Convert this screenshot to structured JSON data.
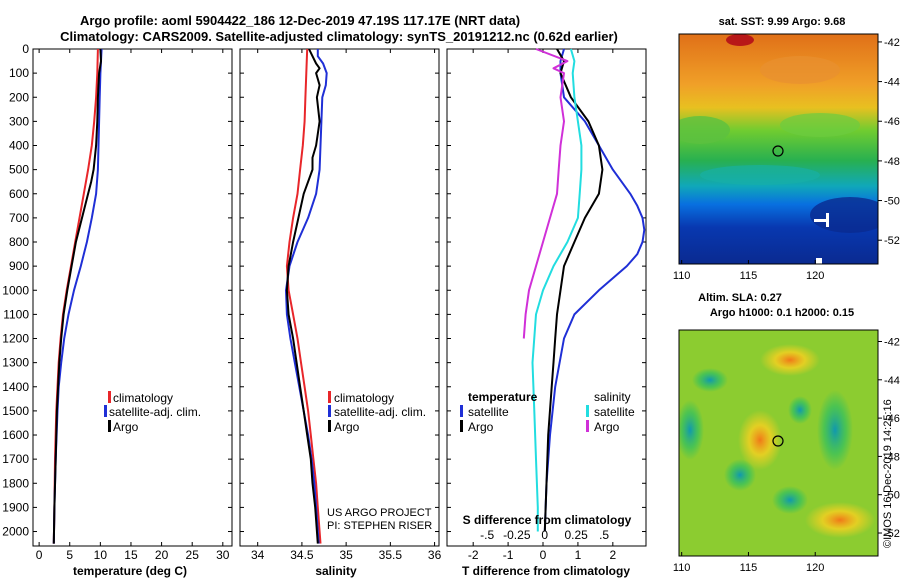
{
  "title_line1": "Argo profile: aoml 5904422_186 12-Dec-2019 47.19S 117.17E (NRT data)",
  "title_line2": "Climatology: CARS2009. Satellite-adjusted climatology: synTS_20191212.nc (0.62d earlier)",
  "colors": {
    "climatology": "#e8262a",
    "satellite": "#1f2fd6",
    "argo": "#000000",
    "sat_salinity": "#22dde0",
    "argo_salinity_diff": "#d030d8"
  },
  "depth_ticks": [
    "0",
    "100",
    "200",
    "300",
    "400",
    "500",
    "600",
    "700",
    "800",
    "900",
    "1000",
    "1100",
    "1200",
    "1300",
    "1400",
    "1500",
    "1600",
    "1700",
    "1800",
    "1900",
    "2000"
  ],
  "chart_data": [
    {
      "type": "line",
      "name": "temperature",
      "xlabel": "temperature (deg C)",
      "ylabel": "",
      "xlim": [
        -1,
        31.5
      ],
      "ylim": [
        2060,
        0
      ],
      "xticks": [
        "0",
        "5",
        "10",
        "15",
        "20",
        "25",
        "30"
      ],
      "legend": [
        "climatology",
        "satellite-adj. clim.",
        "Argo"
      ],
      "legend_position": "bottom-right",
      "series": [
        {
          "name": "climatology",
          "color": "#e8262a",
          "depth": [
            0,
            100,
            200,
            300,
            400,
            500,
            600,
            700,
            800,
            900,
            1000,
            1100,
            1200,
            1300,
            1400,
            1500,
            1700,
            1900,
            2050
          ],
          "values": [
            9.6,
            9.5,
            9.3,
            9.0,
            8.6,
            8.0,
            7.3,
            6.6,
            5.9,
            5.2,
            4.5,
            3.9,
            3.5,
            3.2,
            3.0,
            2.8,
            2.6,
            2.5,
            2.4
          ]
        },
        {
          "name": "satellite-adj. clim.",
          "color": "#1f2fd6",
          "depth": [
            0,
            100,
            200,
            300,
            400,
            500,
            600,
            700,
            800,
            900,
            1000,
            1100,
            1200,
            1300,
            1400,
            1500,
            1700,
            1900,
            2050
          ],
          "values": [
            10.2,
            10.0,
            9.9,
            9.8,
            9.7,
            9.6,
            9.3,
            8.6,
            7.8,
            6.8,
            5.7,
            4.8,
            4.1,
            3.6,
            3.2,
            3.0,
            2.7,
            2.5,
            2.4
          ]
        },
        {
          "name": "Argo",
          "color": "#000000",
          "depth": [
            0,
            50,
            100,
            200,
            300,
            400,
            500,
            550,
            600,
            700,
            800,
            900,
            1000,
            1100,
            1200,
            1300,
            1400,
            1500,
            1700,
            1900,
            2050
          ],
          "values": [
            10.0,
            10.1,
            9.8,
            9.6,
            9.5,
            9.3,
            8.9,
            8.5,
            8.0,
            7.0,
            6.0,
            5.3,
            4.6,
            4.0,
            3.6,
            3.3,
            3.1,
            2.9,
            2.7,
            2.5,
            2.4
          ]
        }
      ]
    },
    {
      "type": "line",
      "name": "salinity",
      "xlabel": "salinity",
      "ylabel": "",
      "xlim": [
        33.8,
        36.05
      ],
      "ylim": [
        2060,
        0
      ],
      "xticks": [
        "34",
        "34.5",
        "35",
        "35.5",
        "36"
      ],
      "legend": [
        "climatology",
        "satellite-adj. clim.",
        "Argo"
      ],
      "legend_position": "bottom-right",
      "annotation": [
        "US ARGO PROJECT",
        "PI: STEPHEN RISER"
      ],
      "series": [
        {
          "name": "climatology",
          "color": "#e8262a",
          "depth": [
            0,
            100,
            200,
            300,
            400,
            500,
            600,
            700,
            800,
            900,
            1000,
            1100,
            1200,
            1300,
            1400,
            1500,
            1600,
            1700,
            1800,
            1900,
            2050
          ],
          "values": [
            34.56,
            34.55,
            34.54,
            34.53,
            34.51,
            34.48,
            34.45,
            34.4,
            34.36,
            34.33,
            34.35,
            34.4,
            34.45,
            34.49,
            34.53,
            34.57,
            34.6,
            34.63,
            34.66,
            34.68,
            34.71
          ]
        },
        {
          "name": "satellite-adj. clim.",
          "color": "#1f2fd6",
          "depth": [
            0,
            30,
            60,
            100,
            150,
            200,
            300,
            400,
            500,
            600,
            700,
            800,
            900,
            1000,
            1100,
            1200,
            1300,
            1400,
            1500,
            1600,
            1700,
            1800,
            1900,
            2050
          ],
          "values": [
            34.68,
            34.68,
            34.74,
            34.78,
            34.77,
            34.73,
            34.72,
            34.71,
            34.7,
            34.66,
            34.57,
            34.45,
            34.36,
            34.32,
            34.33,
            34.37,
            34.42,
            34.47,
            34.52,
            34.57,
            34.61,
            34.64,
            34.66,
            34.69
          ]
        },
        {
          "name": "Argo",
          "color": "#000000",
          "depth": [
            0,
            30,
            60,
            80,
            100,
            150,
            200,
            300,
            400,
            450,
            500,
            600,
            700,
            800,
            900,
            1000,
            1100,
            1200,
            1300,
            1400,
            1500,
            1600,
            1700,
            1800,
            1900,
            2050
          ],
          "values": [
            34.58,
            34.62,
            34.66,
            34.7,
            34.66,
            34.7,
            34.67,
            34.7,
            34.66,
            34.62,
            34.62,
            34.52,
            34.46,
            34.4,
            34.35,
            34.33,
            34.35,
            34.4,
            34.44,
            34.48,
            34.52,
            34.56,
            34.6,
            34.62,
            34.65,
            34.68
          ]
        }
      ]
    },
    {
      "type": "line",
      "name": "difference",
      "xlabel": "T difference from climatology",
      "ylabel": "",
      "xlim": [
        -2.75,
        2.95
      ],
      "ylim": [
        2060,
        0
      ],
      "xticks": [
        "-2",
        "-1",
        "0",
        "1",
        "2"
      ],
      "s_axis": {
        "title": "S difference from climatology",
        "ticks": [
          "-0.5",
          "-0.25",
          "0",
          "0.25",
          "0.5"
        ],
        "positions": [
          -1.6,
          -0.75,
          0.05,
          0.95,
          1.75
        ]
      },
      "legend": [
        "temperature",
        "satellite",
        "Argo",
        "salinity",
        "satellite",
        "Argo"
      ],
      "legend_position": "bottom",
      "series": [
        {
          "name": "temperature satellite",
          "color": "#1f2fd6",
          "depth": [
            0,
            50,
            100,
            200,
            300,
            400,
            500,
            600,
            650,
            700,
            750,
            800,
            850,
            900,
            1000,
            1100,
            1200,
            1400,
            1600,
            1800,
            2000
          ],
          "values": [
            0.6,
            0.5,
            0.5,
            0.6,
            1.2,
            1.6,
            2.0,
            2.5,
            2.7,
            2.85,
            2.9,
            2.85,
            2.7,
            2.4,
            1.6,
            0.9,
            0.6,
            0.35,
            0.2,
            0.1,
            0.05
          ]
        },
        {
          "name": "temperature Argo",
          "color": "#000000",
          "depth": [
            0,
            50,
            100,
            200,
            300,
            400,
            500,
            600,
            700,
            800,
            900,
            1000,
            1100,
            1200,
            1300,
            1400,
            1600,
            1800,
            2000
          ],
          "values": [
            0.4,
            0.6,
            0.5,
            0.8,
            1.3,
            1.6,
            1.7,
            1.6,
            1.2,
            0.9,
            0.6,
            0.5,
            0.4,
            0.35,
            0.3,
            0.25,
            0.15,
            0.1,
            0.05
          ]
        },
        {
          "name": "salinity satellite",
          "color": "#22dde0",
          "depth": [
            0,
            50,
            100,
            200,
            300,
            400,
            500,
            600,
            700,
            800,
            900,
            1000,
            1100,
            1300,
            1500,
            1700,
            1900,
            2000
          ],
          "values": [
            0.8,
            0.9,
            0.85,
            0.9,
            1.0,
            1.1,
            1.1,
            1.05,
            1.0,
            0.7,
            0.3,
            0.0,
            -0.2,
            -0.3,
            -0.25,
            -0.2,
            -0.15,
            -0.15
          ]
        },
        {
          "name": "salinity Argo",
          "color": "#d030d8",
          "depth": [
            0,
            50,
            80,
            100,
            200,
            300,
            400,
            500,
            600,
            700,
            800,
            900,
            1000,
            1100,
            1200
          ],
          "values": [
            -0.2,
            0.7,
            0.3,
            0.6,
            0.5,
            0.6,
            0.5,
            0.45,
            0.4,
            0.2,
            0.0,
            -0.2,
            -0.4,
            -0.5,
            -0.55
          ]
        }
      ]
    }
  ],
  "map_sst": {
    "title": "sat. SST: 9.99 Argo: 9.68",
    "xticks": [
      "110",
      "115",
      "120"
    ],
    "yticks": [
      "-42",
      "-44",
      "-46",
      "-48",
      "-50",
      "-52"
    ]
  },
  "map_sla": {
    "title_line1": "Altim. SLA: 0.27",
    "title_line2": "Argo h1000: 0.1 h2000: 0.15",
    "xticks": [
      "110",
      "115",
      "120"
    ],
    "yticks": [
      "-42",
      "-44",
      "-46",
      "-48",
      "-50",
      "-52"
    ]
  },
  "credit": "©IMOS 16-Dec-2019 14:25:16"
}
